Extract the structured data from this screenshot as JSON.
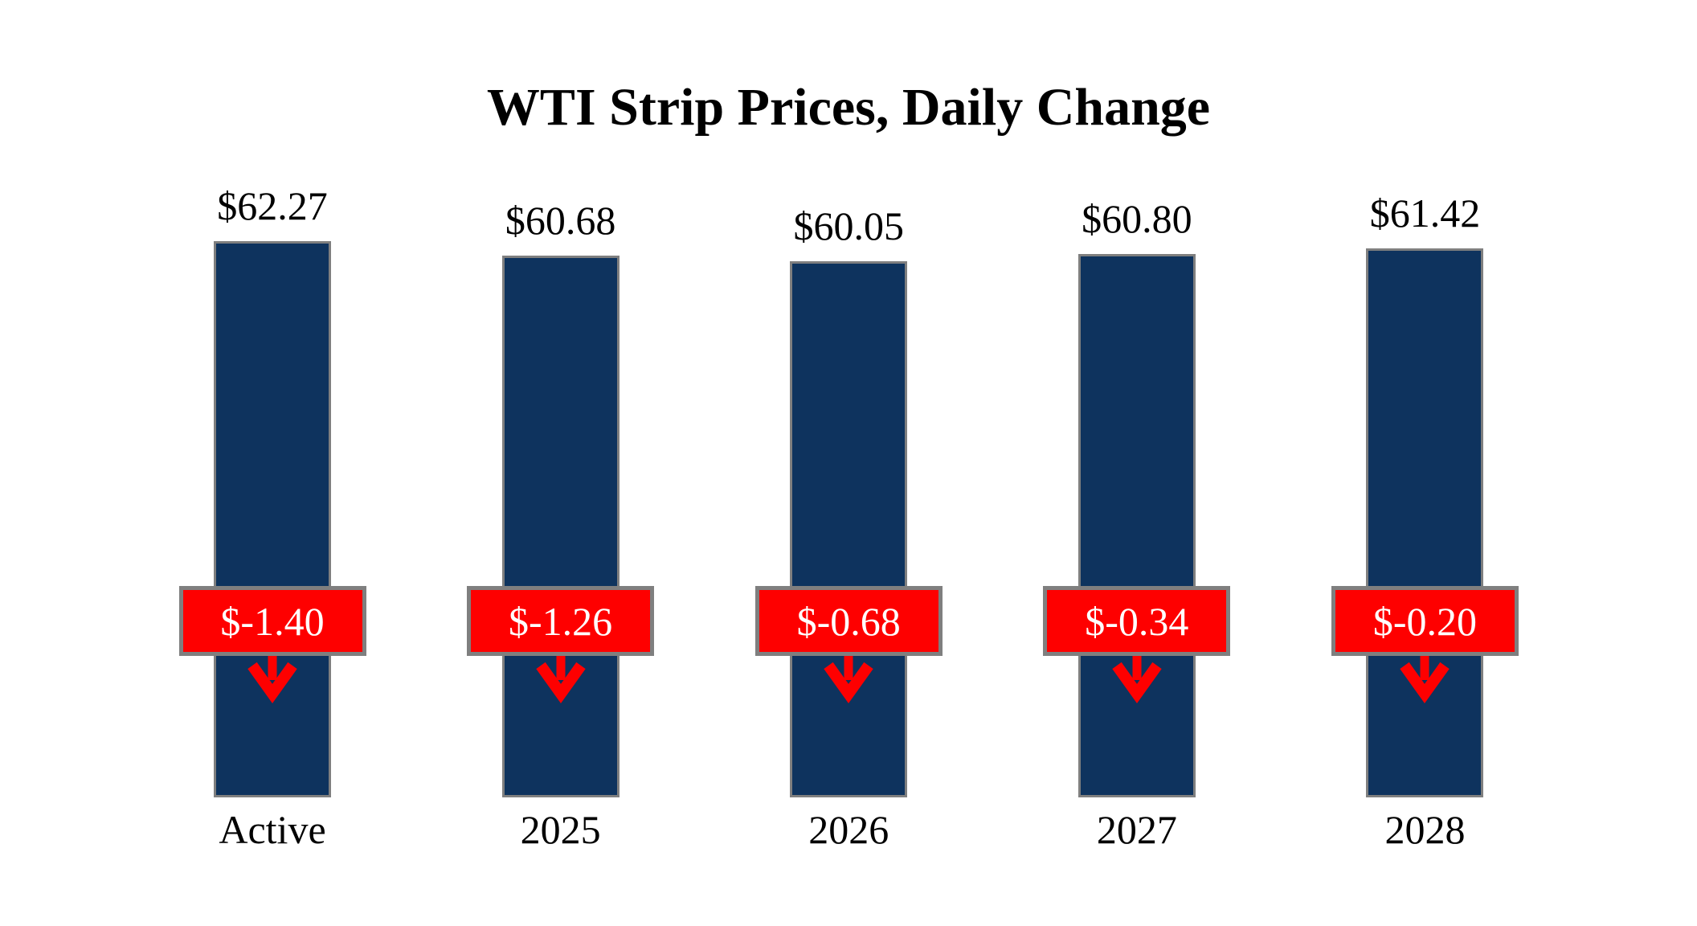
{
  "title": "WTI Strip Prices, Daily Change",
  "colors": {
    "bar_fill": "#0E335E",
    "bar_border": "#7F7F7F",
    "badge_fill": "#FE0000",
    "badge_border": "#7F7F7F",
    "badge_text": "#FFFFFF",
    "arrow_red": "#FE0000",
    "label_text": "#000000",
    "background": "#FFFFFF"
  },
  "chart_data": {
    "type": "bar",
    "title": "WTI Strip Prices, Daily Change",
    "categories": [
      "Active",
      "2025",
      "2026",
      "2027",
      "2028"
    ],
    "series": [
      {
        "name": "WTI Strip Price ($/bbl)",
        "values": [
          62.27,
          60.68,
          60.05,
          60.8,
          61.42
        ]
      },
      {
        "name": "Daily Change ($/bbl)",
        "values": [
          -1.4,
          -1.26,
          -0.68,
          -0.34,
          -0.2
        ]
      }
    ],
    "value_labels": [
      "$62.27",
      "$60.68",
      "$60.05",
      "$60.80",
      "$61.42"
    ],
    "change_labels": [
      "$-1.40",
      "$-1.26",
      "$-0.68",
      "$-0.34",
      "$-0.20"
    ],
    "xlabel": "",
    "ylabel": "",
    "ylim": [
      0,
      62.27
    ],
    "grid": false,
    "legend_position": "none",
    "annotations": "red boxes over each bar show the daily change with a red down arrow below each box"
  }
}
